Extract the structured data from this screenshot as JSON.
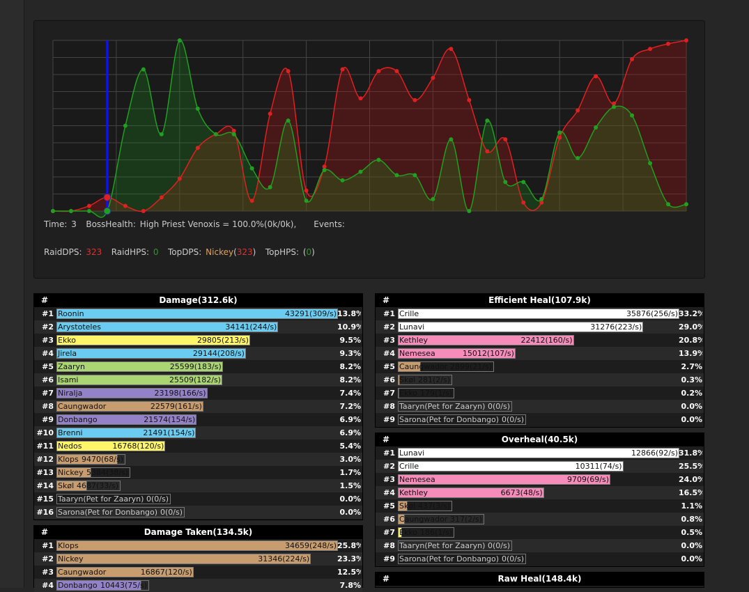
{
  "colors": {
    "dps": "#e02020",
    "hps": "#20a020",
    "cursor": "#1010ff",
    "mage": "#69ccf0",
    "rogue": "#fff569",
    "druid": "#ff7d0a",
    "hunter": "#abd473",
    "warlock": "#9482c9",
    "warrior": "#c79c6e",
    "priest": "#ffffff",
    "paladin": "#f58cba"
  },
  "graph": {
    "info": {
      "time_label": "Time:",
      "time_value": "3",
      "boss_label": "BossHealth:",
      "boss_value": "High Priest Venoxis = 100.0%(0k/0k),",
      "events_label": "Events:"
    },
    "stats": {
      "raid_dps_label": "RaidDPS:",
      "raid_dps": "323",
      "raid_hps_label": "RaidHPS:",
      "raid_hps": "0",
      "top_dps_label": "TopDPS:",
      "top_dps_name": "Nickey",
      "top_dps": "323",
      "top_dps_open": "(",
      "top_dps_close": ")",
      "top_hps_label": "TopHPS:",
      "top_hps": "0",
      "top_hps_open": "(",
      "top_hps_close": ")"
    },
    "cursor_x": 3,
    "chart_data": {
      "type": "area",
      "x": [
        0,
        1,
        2,
        3,
        4,
        5,
        6,
        7,
        8,
        9,
        10,
        11,
        12,
        13,
        14,
        15,
        16,
        17,
        18,
        19,
        20,
        21,
        22,
        23,
        24,
        25,
        26,
        27,
        28,
        29,
        30,
        31,
        32,
        33,
        34,
        35
      ],
      "ylim": [
        0,
        100
      ],
      "series": [
        {
          "name": "RaidDPS",
          "values": [
            0,
            0,
            3,
            8,
            3,
            0,
            8,
            19,
            37,
            45,
            47,
            6,
            57,
            82,
            12,
            26,
            83,
            66,
            82,
            82,
            65,
            78,
            95,
            65,
            35,
            42,
            5,
            5,
            43,
            59,
            79,
            63,
            89,
            95,
            98,
            100
          ]
        },
        {
          "name": "RaidHPS",
          "values": [
            0,
            0,
            0,
            0,
            50,
            83,
            45,
            100,
            60,
            45,
            45,
            25,
            14,
            53,
            6,
            24,
            18,
            23,
            30,
            21,
            21,
            7,
            42,
            0,
            53,
            17,
            17,
            7,
            46,
            31,
            49,
            61,
            56,
            28,
            4,
            4
          ]
        }
      ]
    }
  },
  "meters": [
    {
      "title": "Damage(312.6k)",
      "hash": "#",
      "rows": [
        {
          "rank": "#1",
          "name": "Roonin",
          "val": "43291(309/s)",
          "pct": "13.8%",
          "frac": 1.0,
          "color": "mage"
        },
        {
          "rank": "#2",
          "name": "Arystoteles",
          "val": "34141(244/s)",
          "pct": "10.9%",
          "frac": 0.788,
          "color": "mage"
        },
        {
          "rank": "#3",
          "name": "Ekko",
          "val": "29805(213/s)",
          "pct": "9.5%",
          "frac": 0.688,
          "color": "rogue"
        },
        {
          "rank": "#4",
          "name": "Jirela",
          "val": "29144(208/s)",
          "pct": "9.3%",
          "frac": 0.673,
          "color": "mage"
        },
        {
          "rank": "#5",
          "name": "Zaaryn",
          "val": "25599(183/s)",
          "pct": "8.2%",
          "frac": 0.591,
          "color": "hunter"
        },
        {
          "rank": "#6",
          "name": "Isami",
          "val": "25509(182/s)",
          "pct": "8.2%",
          "frac": 0.589,
          "color": "hunter"
        },
        {
          "rank": "#7",
          "name": "Niralja",
          "val": "23198(166/s)",
          "pct": "7.4%",
          "frac": 0.536,
          "color": "warlock"
        },
        {
          "rank": "#8",
          "name": "Caungwador",
          "val": "22579(161/s)",
          "pct": "7.2%",
          "frac": 0.522,
          "color": "warrior"
        },
        {
          "rank": "#9",
          "name": "Donbango",
          "val": "21574(154/s)",
          "pct": "6.9%",
          "frac": 0.498,
          "color": "warlock"
        },
        {
          "rank": "#10",
          "name": "Brenni",
          "val": "21491(154/s)",
          "pct": "6.9%",
          "frac": 0.496,
          "color": "mage"
        },
        {
          "rank": "#11",
          "name": "Nedos",
          "val": "16768(120/s)",
          "pct": "5.4%",
          "frac": 0.387,
          "color": "rogue"
        },
        {
          "rank": "#12",
          "name": "Klops",
          "val": "9470(68/s)",
          "pct": "3.0%",
          "frac": 0.219,
          "color": "warrior"
        },
        {
          "rank": "#13",
          "name": "Nickey",
          "val": "5384(38/s)",
          "pct": "1.7%",
          "frac": 0.124,
          "color": "warrior"
        },
        {
          "rank": "#14",
          "name": "Skøl",
          "val": "4687(33/s)",
          "pct": "1.5%",
          "frac": 0.108,
          "color": "warrior"
        },
        {
          "rank": "#15",
          "name": "Taaryn(Pet for Zaaryn)",
          "val": "0(0/s)",
          "pct": "0.0%",
          "frac": 0,
          "color": "none"
        },
        {
          "rank": "#16",
          "name": "Sarona(Pet for Donbango)",
          "val": "0(0/s)",
          "pct": "0.0%",
          "frac": 0,
          "color": "none"
        }
      ]
    },
    {
      "title": "Damage Taken(134.5k)",
      "hash": "#",
      "rows": [
        {
          "rank": "#1",
          "name": "Klops",
          "val": "34659(248/s)",
          "pct": "25.8%",
          "frac": 1.0,
          "color": "warrior"
        },
        {
          "rank": "#2",
          "name": "Nickey",
          "val": "31346(224/s)",
          "pct": "23.3%",
          "frac": 0.904,
          "color": "warrior"
        },
        {
          "rank": "#3",
          "name": "Caungwador",
          "val": "16867(120/s)",
          "pct": "12.5%",
          "frac": 0.487,
          "color": "warrior"
        },
        {
          "rank": "#4",
          "name": "Donbango",
          "val": "10443(75/s)",
          "pct": "7.8%",
          "frac": 0.301,
          "color": "warlock"
        }
      ]
    },
    {
      "title": "Efficient Heal(107.9k)",
      "hash": "#",
      "rows": [
        {
          "rank": "#1",
          "name": "Crille",
          "val": "35876(256/s)",
          "pct": "33.2%",
          "frac": 1.0,
          "color": "priest"
        },
        {
          "rank": "#2",
          "name": "Lunavi",
          "val": "31276(223/s)",
          "pct": "29.0%",
          "frac": 0.872,
          "color": "priest"
        },
        {
          "rank": "#3",
          "name": "Kethley",
          "val": "22412(160/s)",
          "pct": "20.8%",
          "frac": 0.625,
          "color": "paladin"
        },
        {
          "rank": "#4",
          "name": "Nemesea",
          "val": "15012(107/s)",
          "pct": "13.9%",
          "frac": 0.418,
          "color": "paladin"
        },
        {
          "rank": "#5",
          "name": "Caungwador",
          "val": "2899(21/s)",
          "pct": "2.7%",
          "frac": 0.081,
          "color": "warrior"
        },
        {
          "rank": "#6",
          "name": "Skøl",
          "val": "281(2/s)",
          "pct": "0.3%",
          "frac": 0.008,
          "color": "warrior"
        },
        {
          "rank": "#7",
          "name": "Ekko",
          "val": "179(1/s)",
          "pct": "0.2%",
          "frac": 0.005,
          "color": "rogue"
        },
        {
          "rank": "#8",
          "name": "Taaryn(Pet for Zaaryn)",
          "val": "0(0/s)",
          "pct": "0.0%",
          "frac": 0,
          "color": "none"
        },
        {
          "rank": "#9",
          "name": "Sarona(Pet for Donbango)",
          "val": "0(0/s)",
          "pct": "0.0%",
          "frac": 0,
          "color": "none"
        }
      ]
    },
    {
      "title": "Overheal(40.5k)",
      "hash": "#",
      "rows": [
        {
          "rank": "#1",
          "name": "Lunavi",
          "val": "12866(92/s)",
          "pct": "31.8%",
          "frac": 1.0,
          "color": "priest"
        },
        {
          "rank": "#2",
          "name": "Crille",
          "val": "10311(74/s)",
          "pct": "25.5%",
          "frac": 0.801,
          "color": "priest"
        },
        {
          "rank": "#3",
          "name": "Nemesea",
          "val": "9709(69/s)",
          "pct": "24.0%",
          "frac": 0.755,
          "color": "paladin"
        },
        {
          "rank": "#4",
          "name": "Kethley",
          "val": "6673(48/s)",
          "pct": "16.5%",
          "frac": 0.519,
          "color": "paladin"
        },
        {
          "rank": "#5",
          "name": "Skøl",
          "val": "437(3/s)",
          "pct": "1.1%",
          "frac": 0.034,
          "color": "warrior"
        },
        {
          "rank": "#6",
          "name": "Caungwador",
          "val": "317(2/s)",
          "pct": "0.8%",
          "frac": 0.025,
          "color": "warrior"
        },
        {
          "rank": "#7",
          "name": "Ekko",
          "val": "186(1/s)",
          "pct": "0.5%",
          "frac": 0.014,
          "color": "rogue"
        },
        {
          "rank": "#8",
          "name": "Taaryn(Pet for Zaaryn)",
          "val": "0(0/s)",
          "pct": "0.0%",
          "frac": 0,
          "color": "none"
        },
        {
          "rank": "#9",
          "name": "Sarona(Pet for Donbango)",
          "val": "0(0/s)",
          "pct": "0.0%",
          "frac": 0,
          "color": "none"
        }
      ]
    },
    {
      "title": "Raw Heal(148.4k)",
      "hash": "#",
      "rows": []
    }
  ]
}
